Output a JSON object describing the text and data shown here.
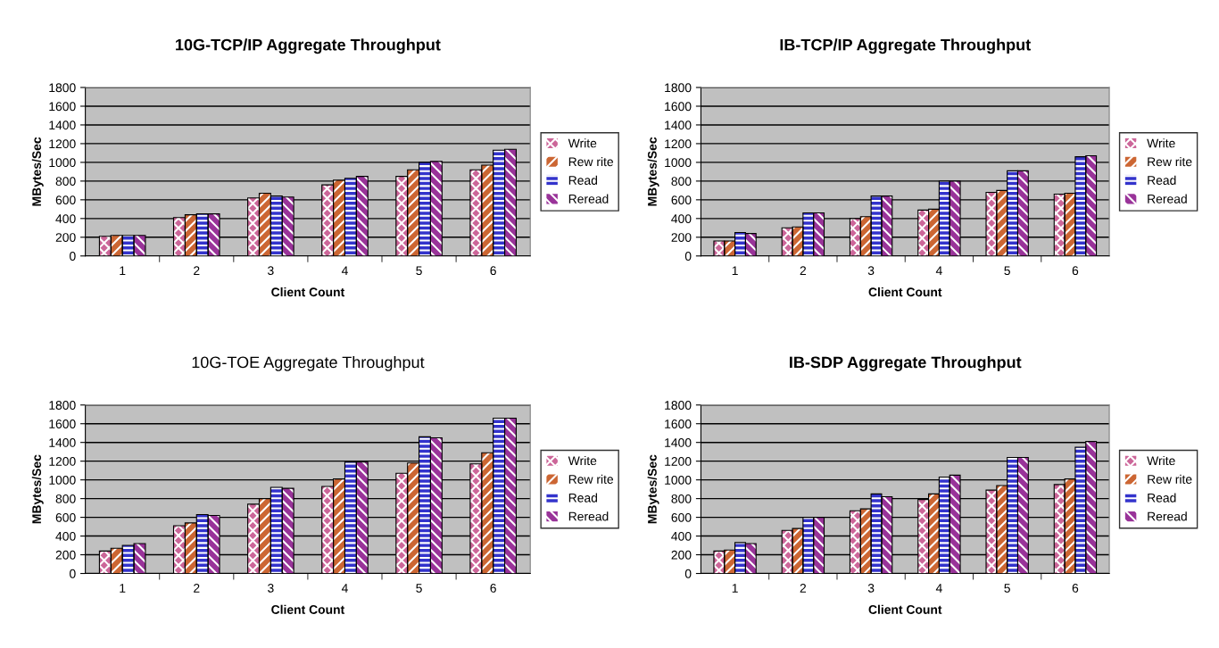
{
  "chart_data": [
    {
      "type": "bar",
      "title": "10G-TCP/IP Aggregate Throughput",
      "xlabel": "Client Count",
      "ylabel": "MBytes/Sec",
      "categories": [
        "1",
        "2",
        "3",
        "4",
        "5",
        "6"
      ],
      "ylim": [
        0,
        1800
      ],
      "yticks": [
        0,
        200,
        400,
        600,
        800,
        1000,
        1200,
        1400,
        1600,
        1800
      ],
      "grid": "y",
      "legend": "right",
      "series": [
        {
          "name": "Write",
          "color": "#cc6699",
          "values": [
            210,
            410,
            620,
            760,
            850,
            920
          ]
        },
        {
          "name": "Rew rite",
          "color": "#cc6633",
          "values": [
            220,
            440,
            670,
            810,
            920,
            970
          ]
        },
        {
          "name": "Read",
          "color": "#3333cc",
          "values": [
            220,
            450,
            640,
            830,
            1000,
            1130
          ]
        },
        {
          "name": "Reread",
          "color": "#993399",
          "values": [
            220,
            450,
            630,
            850,
            1010,
            1140
          ]
        }
      ]
    },
    {
      "type": "bar",
      "title": "IB-TCP/IP Aggregate Throughput",
      "xlabel": "Client Count",
      "ylabel": "MBytes/Sec",
      "categories": [
        "1",
        "2",
        "3",
        "4",
        "5",
        "6"
      ],
      "ylim": [
        0,
        1800
      ],
      "yticks": [
        0,
        200,
        400,
        600,
        800,
        1000,
        1200,
        1400,
        1600,
        1800
      ],
      "grid": "y",
      "legend": "right",
      "series": [
        {
          "name": "Write",
          "color": "#cc6699",
          "values": [
            160,
            300,
            400,
            490,
            680,
            660
          ]
        },
        {
          "name": "Rew rite",
          "color": "#cc6633",
          "values": [
            160,
            310,
            420,
            500,
            700,
            670
          ]
        },
        {
          "name": "Read",
          "color": "#3333cc",
          "values": [
            250,
            460,
            640,
            800,
            910,
            1060
          ]
        },
        {
          "name": "Reread",
          "color": "#993399",
          "values": [
            240,
            460,
            640,
            800,
            910,
            1070
          ]
        }
      ]
    },
    {
      "type": "bar",
      "title": "10G-TOE Aggregate Throughput",
      "xlabel": "Client Count",
      "ylabel": "MBytes/Sec",
      "categories": [
        "1",
        "2",
        "3",
        "4",
        "5",
        "6"
      ],
      "ylim": [
        0,
        1800
      ],
      "yticks": [
        0,
        200,
        400,
        600,
        800,
        1000,
        1200,
        1400,
        1600,
        1800
      ],
      "grid": "y",
      "legend": "right",
      "series": [
        {
          "name": "Write",
          "color": "#cc6699",
          "values": [
            240,
            510,
            740,
            930,
            1070,
            1170
          ]
        },
        {
          "name": "Rew rite",
          "color": "#cc6633",
          "values": [
            270,
            540,
            800,
            1010,
            1180,
            1290
          ]
        },
        {
          "name": "Read",
          "color": "#3333cc",
          "values": [
            300,
            630,
            920,
            1190,
            1460,
            1660
          ]
        },
        {
          "name": "Reread",
          "color": "#993399",
          "values": [
            320,
            620,
            910,
            1190,
            1450,
            1660
          ]
        }
      ]
    },
    {
      "type": "bar",
      "title": "IB-SDP Aggregate Throughput",
      "xlabel": "Client Count",
      "ylabel": "MBytes/Sec",
      "categories": [
        "1",
        "2",
        "3",
        "4",
        "5",
        "6"
      ],
      "ylim": [
        0,
        1800
      ],
      "yticks": [
        0,
        200,
        400,
        600,
        800,
        1000,
        1200,
        1400,
        1600,
        1800
      ],
      "grid": "y",
      "legend": "right",
      "series": [
        {
          "name": "Write",
          "color": "#cc6699",
          "values": [
            240,
            460,
            670,
            790,
            890,
            950
          ]
        },
        {
          "name": "Rew rite",
          "color": "#cc6633",
          "values": [
            250,
            480,
            690,
            850,
            940,
            1010
          ]
        },
        {
          "name": "Read",
          "color": "#3333cc",
          "values": [
            330,
            600,
            850,
            1030,
            1240,
            1350
          ]
        },
        {
          "name": "Reread",
          "color": "#993399",
          "values": [
            320,
            600,
            820,
            1050,
            1240,
            1410
          ]
        }
      ]
    }
  ]
}
